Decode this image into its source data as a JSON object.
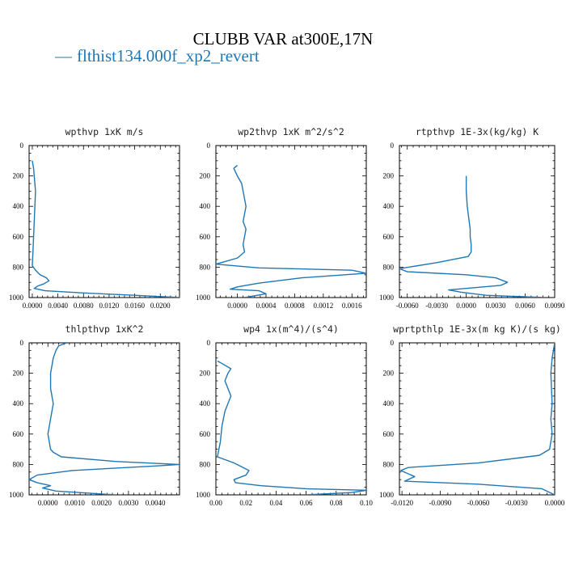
{
  "title": "CLUBB VAR at300E,17N",
  "legend": {
    "dash": "—",
    "label": "flthist134.000f_xp2_revert",
    "color": "#1f77b4"
  },
  "chart_data": [
    {
      "type": "line",
      "title": "wpthvp   1xK m/s",
      "xlim": [
        -0.0005,
        0.023
      ],
      "ylim": [
        1000,
        0
      ],
      "xticks": [
        0.0,
        0.004,
        0.008,
        0.012,
        0.016,
        0.02
      ],
      "xtick_labels": [
        "0.0000",
        "0.0040",
        "0.0080",
        "0.0120",
        "0.0160",
        "0.0200"
      ],
      "yticks": [
        0,
        200,
        400,
        600,
        800,
        1000
      ],
      "series": [
        {
          "x": [
            0.0,
            0.0002,
            0.0003,
            0.0005,
            0.0004,
            0.0003,
            0.0002,
            0.0001,
            0.0,
            0.0005,
            0.0012,
            0.0022,
            0.0026,
            0.0018,
            0.0008,
            0.0003,
            0.002,
            0.008,
            0.016,
            0.023
          ],
          "y": [
            100,
            150,
            200,
            300,
            400,
            500,
            600,
            700,
            790,
            820,
            850,
            870,
            890,
            910,
            925,
            940,
            955,
            970,
            985,
            1000
          ]
        }
      ]
    },
    {
      "type": "line",
      "title": "wp2thvp   1xK m^2/s^2",
      "xlim": [
        -0.0003,
        0.0018
      ],
      "ylim": [
        1000,
        0
      ],
      "xticks": [
        0.0,
        0.0004,
        0.0008,
        0.0012,
        0.0016
      ],
      "xtick_labels": [
        "0.0000",
        "0.0004",
        "0.0008",
        "0.0012",
        "0.0016"
      ],
      "yticks": [
        0,
        200,
        400,
        600,
        800,
        1000
      ],
      "series": [
        {
          "x": [
            0.0,
            -5e-05,
            0.0,
            6e-05,
            8e-05,
            0.0001,
            0.00012,
            0.0001,
            8e-05,
            0.00012,
            0.0001,
            8e-05,
            0.0001,
            0.0,
            -0.0003,
            0.0003,
            0.0016,
            0.0018,
            0.0009,
            0.0003,
            0.0,
            -0.0001,
            0.0003,
            0.0004,
            0.0001
          ],
          "y": [
            130,
            150,
            200,
            250,
            300,
            350,
            400,
            450,
            500,
            550,
            600,
            650,
            700,
            740,
            780,
            805,
            820,
            840,
            870,
            905,
            930,
            945,
            955,
            975,
            1000
          ]
        }
      ]
    },
    {
      "type": "line",
      "title": "rtpthvp   1E-3x(kg/kg) K",
      "xlim": [
        -0.0068,
        0.009
      ],
      "ylim": [
        1000,
        0
      ],
      "xticks": [
        -0.006,
        -0.003,
        0.0,
        0.003,
        0.006,
        0.009
      ],
      "xtick_labels": [
        "-0.0060",
        "-0.0030",
        "0.0000",
        "0.0030",
        "0.0060",
        "0.0090"
      ],
      "yticks": [
        0,
        200,
        400,
        600,
        800,
        1000
      ],
      "series": [
        {
          "x": [
            0.0,
            0.0,
            0.0001,
            0.0003,
            0.0004,
            0.0004,
            0.0005,
            0.0005,
            0.0002,
            -0.003,
            -0.0068,
            -0.006,
            0.0,
            0.003,
            0.0042,
            0.0035,
            0.0,
            -0.0018,
            -0.0005,
            0.002,
            0.008
          ],
          "y": [
            200,
            300,
            400,
            500,
            550,
            600,
            650,
            700,
            730,
            770,
            810,
            830,
            850,
            870,
            900,
            920,
            940,
            950,
            965,
            985,
            1000
          ]
        }
      ]
    },
    {
      "type": "line",
      "title": "thlpthvp   1xK^2",
      "xlim": [
        -0.0007,
        0.0049
      ],
      "ylim": [
        1000,
        0
      ],
      "xticks": [
        0.0,
        0.001,
        0.002,
        0.003,
        0.004
      ],
      "xtick_labels": [
        "0.0000",
        "0.0010",
        "0.0020",
        "0.0030",
        "0.0040"
      ],
      "yticks": [
        0,
        200,
        400,
        600,
        800,
        1000
      ],
      "series": [
        {
          "x": [
            0.0007,
            0.0004,
            0.0003,
            0.0002,
            0.0001,
            0.0001,
            0.0002,
            0.0001,
            0.0,
            0.0001,
            0.0002,
            0.0005,
            0.0025,
            0.0049,
            0.004,
            0.0009,
            -0.0004,
            -0.0007,
            -0.0004,
            0.0001,
            -0.0002,
            0.0003,
            0.0025
          ],
          "y": [
            0,
            20,
            50,
            100,
            200,
            300,
            400,
            500,
            600,
            700,
            720,
            750,
            780,
            800,
            810,
            840,
            870,
            900,
            920,
            940,
            955,
            975,
            1000
          ]
        }
      ]
    },
    {
      "type": "line",
      "title": "wp4   1x(m^4)/(s^4)",
      "xlim": [
        0.0,
        0.1
      ],
      "ylim": [
        1000,
        0
      ],
      "xticks": [
        0.0,
        0.02,
        0.04,
        0.06,
        0.08,
        0.1
      ],
      "xtick_labels": [
        "0.00",
        "0.02",
        "0.04",
        "0.06",
        "0.08",
        "0.10"
      ],
      "yticks": [
        0,
        200,
        400,
        600,
        800,
        1000
      ],
      "series": [
        {
          "x": [
            0.001,
            0.003,
            0.01,
            0.008,
            0.006,
            0.008,
            0.01,
            0.008,
            0.006,
            0.004,
            0.003,
            0.001,
            0.012,
            0.022,
            0.02,
            0.012,
            0.013,
            0.03,
            0.06,
            0.1,
            0.09,
            0.06
          ],
          "y": [
            120,
            130,
            170,
            200,
            250,
            300,
            350,
            400,
            450,
            550,
            650,
            750,
            790,
            840,
            870,
            900,
            920,
            940,
            960,
            970,
            985,
            1000
          ]
        }
      ]
    },
    {
      "type": "line",
      "title": "wprtpthlp   1E-3x(m kg K)/(s kg)",
      "xlim": [
        -0.0122,
        0.0
      ],
      "ylim": [
        1000,
        0
      ],
      "xticks": [
        -0.012,
        -0.009,
        -0.006,
        -0.003,
        0.0
      ],
      "xtick_labels": [
        "-0.0120",
        "-0.0090",
        "-0.0060",
        "-0.0030",
        "0.0000"
      ],
      "yticks": [
        0,
        200,
        400,
        600,
        800,
        1000
      ],
      "series": [
        {
          "x": [
            0.0,
            -0.0002,
            -0.0003,
            -0.0002,
            -0.0003,
            -0.0002,
            -0.0004,
            -0.0012,
            -0.006,
            -0.0115,
            -0.0121,
            -0.011,
            -0.0118,
            -0.006,
            -0.001,
            0.0
          ],
          "y": [
            0,
            100,
            200,
            400,
            500,
            600,
            700,
            740,
            790,
            820,
            840,
            880,
            910,
            930,
            960,
            1000
          ]
        }
      ]
    }
  ]
}
